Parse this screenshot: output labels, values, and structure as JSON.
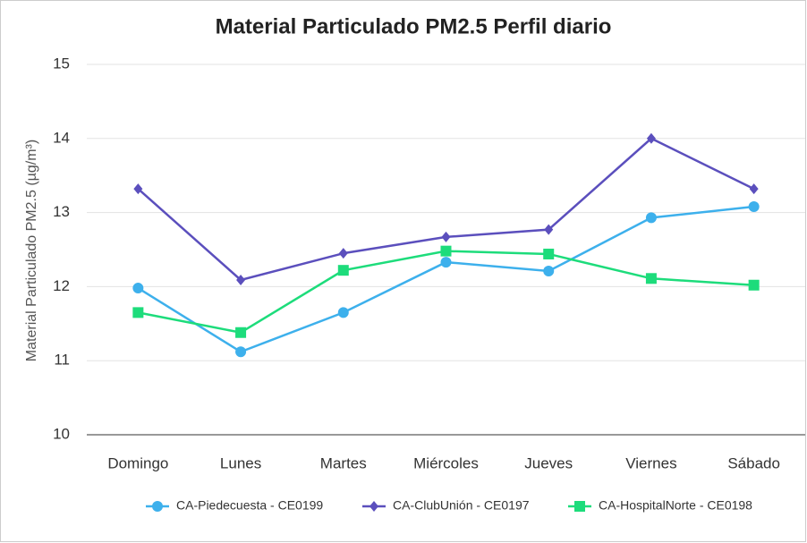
{
  "chart_data": {
    "type": "line",
    "title": "Material Particulado PM2.5 Perfil diario",
    "y_label": "Material Particulado PM2.5 (µg/m³)",
    "categories": [
      "Domingo",
      "Lunes",
      "Martes",
      "Miércoles",
      "Jueves",
      "Viernes",
      "Sábado"
    ],
    "series": [
      {
        "name": "CA-Piedecuesta - CE0199",
        "color": "#3db0ec",
        "marker": "circle",
        "values": [
          11.98,
          11.12,
          11.65,
          12.33,
          12.21,
          12.93,
          13.08
        ]
      },
      {
        "name": "CA-ClubUnión - CE0197",
        "color": "#5b4fbd",
        "marker": "diamond",
        "values": [
          13.32,
          12.09,
          12.45,
          12.67,
          12.77,
          14.0,
          13.32
        ]
      },
      {
        "name": "CA-HospitalNorte - CE0198",
        "color": "#1ddc7b",
        "marker": "square",
        "values": [
          11.65,
          11.38,
          12.22,
          12.48,
          12.44,
          12.11,
          12.02
        ]
      }
    ],
    "ylim": [
      10,
      15
    ],
    "yticks": [
      10,
      11,
      12,
      13,
      14,
      15
    ],
    "grid": true,
    "legend": "bottom"
  }
}
